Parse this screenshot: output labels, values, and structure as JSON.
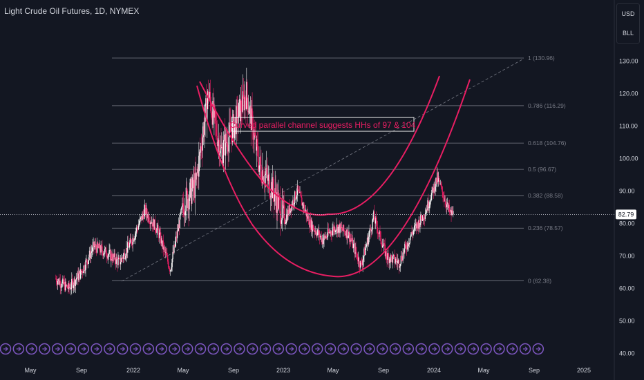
{
  "header": {
    "title": "Light Crude Oil Futures, 1D, NYMEX"
  },
  "currency_panel": {
    "currency": "USD",
    "unit": "BLL"
  },
  "colors": {
    "background": "#131722",
    "up_candle": "#f3f3f3",
    "down_candle": "#e91e63",
    "channel": "#e91e63",
    "fib_line": "#787b86",
    "grid_text": "#d1d4dc",
    "trend_line": "#787b86",
    "event_icon": "#7e57c2"
  },
  "chart_data": {
    "type": "candlestick",
    "symbol": "Light Crude Oil Futures",
    "interval": "1D",
    "exchange": "NYMEX",
    "y_axis": {
      "ticks": [
        "130.00",
        "120.00",
        "110.00",
        "100.00",
        "90.00",
        "80.00",
        "70.00",
        "60.00",
        "50.00",
        "40.00"
      ],
      "range": [
        40,
        130
      ]
    },
    "x_axis": {
      "ticks": [
        "May",
        "Sep",
        "2022",
        "May",
        "Sep",
        "2023",
        "May",
        "Sep",
        "2024",
        "May",
        "Sep",
        "2025"
      ]
    },
    "last_price": "82.79",
    "fib_levels": [
      {
        "ratio": 1,
        "price": 130.96,
        "label": "1 (130.96)"
      },
      {
        "ratio": 0.786,
        "price": 116.29,
        "label": "0.786 (116.29)"
      },
      {
        "ratio": 0.618,
        "price": 104.76,
        "label": "0.618 (104.76)"
      },
      {
        "ratio": 0.5,
        "price": 96.67,
        "label": "0.5 (96.67)"
      },
      {
        "ratio": 0.382,
        "price": 88.58,
        "label": "0.382 (88.58)"
      },
      {
        "ratio": 0.236,
        "price": 78.57,
        "label": "0.236 (78.57)"
      },
      {
        "ratio": 0,
        "price": 62.38,
        "label": "0 (62.38)"
      }
    ],
    "price_path": [
      [
        "2021-03",
        63
      ],
      [
        "2021-04",
        60
      ],
      [
        "2021-05",
        65
      ],
      [
        "2021-06",
        73
      ],
      [
        "2021-07",
        71
      ],
      [
        "2021-08",
        68
      ],
      [
        "2021-09",
        75
      ],
      [
        "2021-10",
        84
      ],
      [
        "2021-11",
        78
      ],
      [
        "2021-12",
        66
      ],
      [
        "2022-01",
        86
      ],
      [
        "2022-02",
        92
      ],
      [
        "2022-03",
        120
      ],
      [
        "2022-04",
        102
      ],
      [
        "2022-05",
        110
      ],
      [
        "2022-06",
        120
      ],
      [
        "2022-07",
        98
      ],
      [
        "2022-08",
        91
      ],
      [
        "2022-09",
        81
      ],
      [
        "2022-10",
        90
      ],
      [
        "2022-11",
        80
      ],
      [
        "2022-12",
        75
      ],
      [
        "2023-01",
        79
      ],
      [
        "2023-02",
        77
      ],
      [
        "2023-03",
        67
      ],
      [
        "2023-04",
        82
      ],
      [
        "2023-05",
        70
      ],
      [
        "2023-06",
        68
      ],
      [
        "2023-07",
        77
      ],
      [
        "2023-08",
        83
      ],
      [
        "2023-09",
        94
      ],
      [
        "2023-10",
        83
      ]
    ],
    "annotation": "Curved parallel channel suggests HHs of 97 & 104"
  }
}
